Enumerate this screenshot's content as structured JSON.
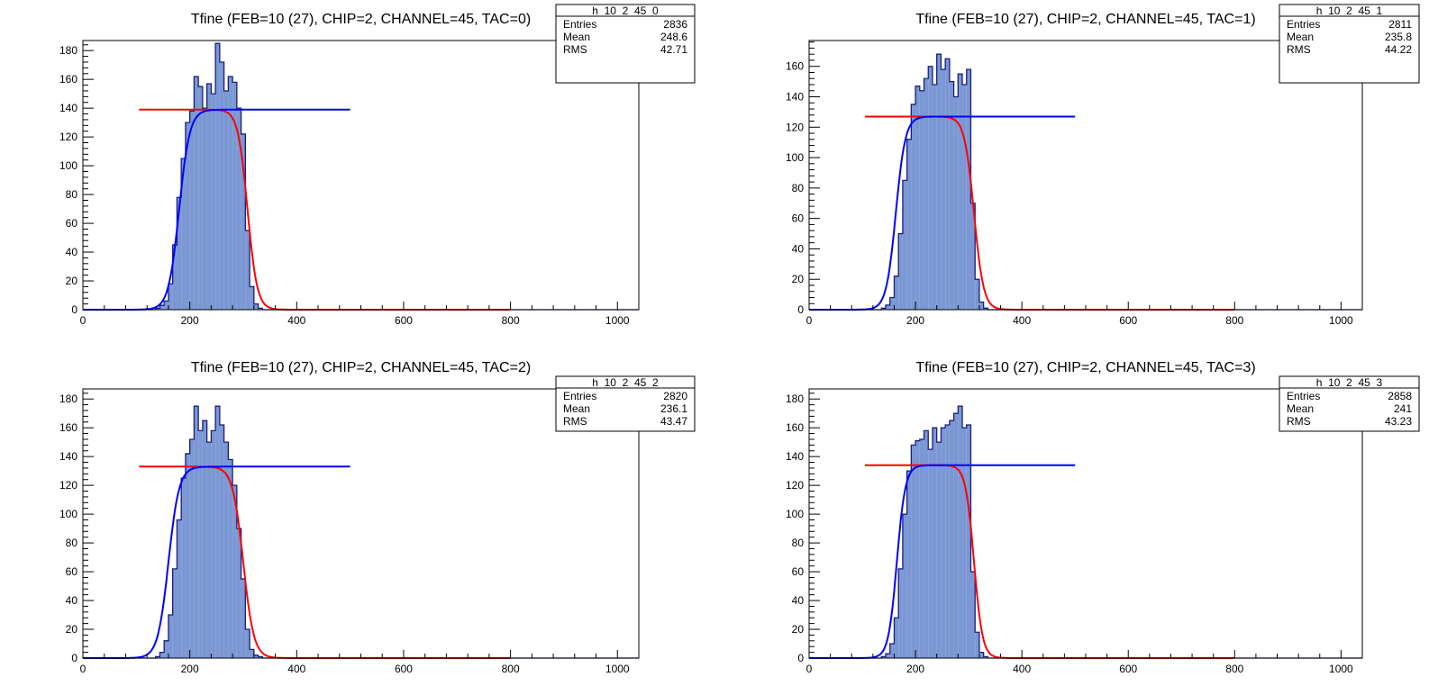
{
  "colors": {
    "hist_fill": "#7b98d4",
    "hist_line": "#1a1f7a",
    "fit_red": "#ff0000",
    "fit_blue": "#0000ff",
    "axis": "#000000"
  },
  "chart_data": [
    {
      "type": "histogram",
      "title": "Tfine (FEB=10 (27), CHIP=2, CHANNEL=45, TAC=0)",
      "xlim": [
        0,
        1040
      ],
      "ylim": [
        0,
        187
      ],
      "x_ticks": [
        0,
        200,
        400,
        600,
        800,
        1000
      ],
      "y_ticks": [
        0,
        20,
        40,
        60,
        80,
        100,
        120,
        140,
        160,
        180
      ],
      "bin_width": 8,
      "bins_x": [
        136,
        144,
        152,
        160,
        168,
        176,
        184,
        192,
        200,
        208,
        216,
        224,
        232,
        240,
        248,
        256,
        264,
        272,
        280,
        288,
        296,
        304,
        312,
        320,
        328,
        336
      ],
      "bins_y": [
        1,
        3,
        6,
        18,
        45,
        78,
        105,
        130,
        138,
        162,
        155,
        140,
        157,
        150,
        185,
        172,
        152,
        162,
        158,
        140,
        122,
        55,
        16,
        4,
        1,
        0
      ],
      "stats": {
        "name": "h_10_2_45_0",
        "entries_label": "Entries",
        "entries": "2836",
        "mean_label": "Mean",
        "mean": "248.6",
        "rms_label": "RMS",
        "rms": "42.71"
      },
      "fit": {
        "plateau": 139,
        "rise_x0": 180,
        "rise_w": 10,
        "fall_x0": 308,
        "fall_w": 9,
        "red_range": [
          105,
          800
        ],
        "blue_range": [
          0,
          500
        ]
      }
    },
    {
      "type": "histogram",
      "title": "Tfine (FEB=10 (27), CHIP=2, CHANNEL=45, TAC=1)",
      "xlim": [
        0,
        1040
      ],
      "ylim": [
        0,
        177
      ],
      "x_ticks": [
        0,
        200,
        400,
        600,
        800,
        1000
      ],
      "y_ticks": [
        0,
        20,
        40,
        60,
        80,
        100,
        120,
        140,
        160
      ],
      "bin_width": 8,
      "bins_x": [
        136,
        144,
        152,
        160,
        168,
        176,
        184,
        192,
        200,
        208,
        216,
        224,
        232,
        240,
        248,
        256,
        264,
        272,
        280,
        288,
        296,
        304,
        312,
        320,
        328,
        336
      ],
      "bins_y": [
        1,
        3,
        8,
        22,
        50,
        85,
        112,
        135,
        147,
        144,
        152,
        160,
        148,
        168,
        158,
        165,
        150,
        140,
        155,
        148,
        158,
        70,
        20,
        5,
        1,
        0
      ],
      "stats": {
        "name": "h_10_2_45_1",
        "entries_label": "Entries",
        "entries": "2811",
        "mean_label": "Mean",
        "mean": "235.8",
        "rms_label": "RMS",
        "rms": "44.22"
      },
      "fit": {
        "plateau": 127,
        "rise_x0": 163,
        "rise_w": 9,
        "fall_x0": 310,
        "fall_w": 9,
        "red_range": [
          105,
          800
        ],
        "blue_range": [
          0,
          500
        ]
      }
    },
    {
      "type": "histogram",
      "title": "Tfine (FEB=10 (27), CHIP=2, CHANNEL=45, TAC=2)",
      "xlim": [
        0,
        1040
      ],
      "ylim": [
        0,
        187
      ],
      "x_ticks": [
        0,
        200,
        400,
        600,
        800,
        1000
      ],
      "y_ticks": [
        0,
        20,
        40,
        60,
        80,
        100,
        120,
        140,
        160,
        180
      ],
      "bin_width": 8,
      "bins_x": [
        136,
        144,
        152,
        160,
        168,
        176,
        184,
        192,
        200,
        208,
        216,
        224,
        232,
        240,
        248,
        256,
        264,
        272,
        280,
        288,
        296,
        304,
        312,
        320,
        328,
        336
      ],
      "bins_y": [
        1,
        4,
        12,
        30,
        62,
        96,
        125,
        142,
        152,
        175,
        158,
        165,
        150,
        158,
        175,
        162,
        150,
        138,
        120,
        90,
        55,
        20,
        6,
        2,
        1,
        0
      ],
      "stats": {
        "name": "h_10_2_45_2",
        "entries_label": "Entries",
        "entries": "2820",
        "mean_label": "Mean",
        "mean": "236.1",
        "rms_label": "RMS",
        "rms": "43.47"
      },
      "fit": {
        "plateau": 133,
        "rise_x0": 160,
        "rise_w": 10,
        "fall_x0": 300,
        "fall_w": 10,
        "red_range": [
          105,
          800
        ],
        "blue_range": [
          0,
          500
        ]
      }
    },
    {
      "type": "histogram",
      "title": "Tfine (FEB=10 (27), CHIP=2, CHANNEL=45, TAC=3)",
      "xlim": [
        0,
        1040
      ],
      "ylim": [
        0,
        187
      ],
      "x_ticks": [
        0,
        200,
        400,
        600,
        800,
        1000
      ],
      "y_ticks": [
        0,
        20,
        40,
        60,
        80,
        100,
        120,
        140,
        160,
        180
      ],
      "bin_width": 8,
      "bins_x": [
        136,
        144,
        152,
        160,
        168,
        176,
        184,
        192,
        200,
        208,
        216,
        224,
        232,
        240,
        248,
        256,
        264,
        272,
        280,
        288,
        296,
        304,
        312,
        320,
        328,
        336
      ],
      "bins_y": [
        1,
        3,
        10,
        28,
        62,
        100,
        130,
        148,
        151,
        152,
        158,
        145,
        160,
        150,
        160,
        162,
        165,
        170,
        175,
        160,
        162,
        60,
        18,
        4,
        1,
        0
      ],
      "stats": {
        "name": "h_10_2_45_3",
        "entries_label": "Entries",
        "entries": "2858",
        "mean_label": "Mean",
        "mean": "241",
        "rms_label": "RMS",
        "rms": "43.23"
      },
      "fit": {
        "plateau": 134,
        "rise_x0": 165,
        "rise_w": 8,
        "fall_x0": 310,
        "fall_w": 8,
        "red_range": [
          105,
          800
        ],
        "blue_range": [
          0,
          500
        ]
      }
    }
  ]
}
